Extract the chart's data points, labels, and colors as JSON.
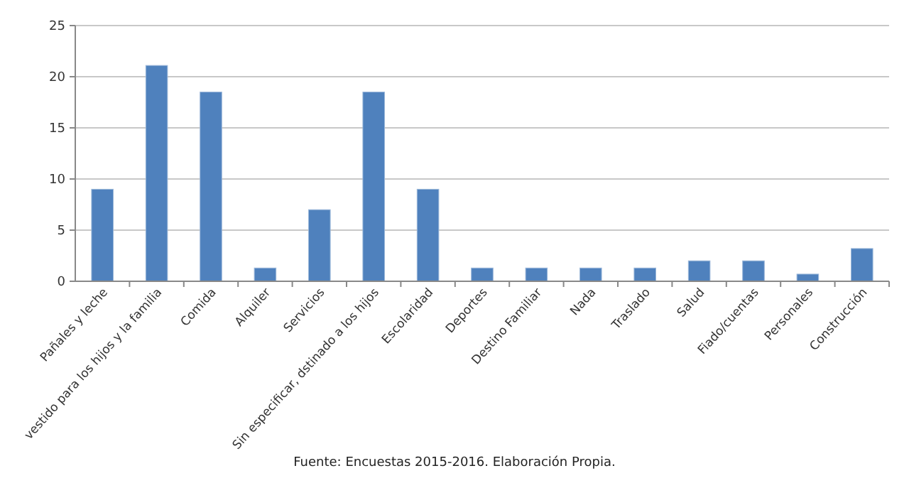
{
  "chart_data": {
    "type": "bar",
    "categories": [
      "Pañales y leche",
      "vestido para los hijos y la familia",
      "Comida",
      "Alquiler",
      "Servicios",
      "Sin especificar, dstinado a los hijos",
      "Escolaridad",
      "Deportes",
      "Destino Familiar",
      "Nada",
      "Traslado",
      "Salud",
      "Fiado/cuentas",
      "Personales",
      "Construcción"
    ],
    "values": [
      9,
      21.1,
      18.5,
      1.3,
      7,
      18.5,
      9,
      1.3,
      1.3,
      1.3,
      1.3,
      2,
      2,
      0.7,
      3.2
    ],
    "color": "#4f81bd",
    "ylim": [
      0,
      25
    ],
    "yticks": [
      0,
      5,
      10,
      15,
      20,
      25
    ],
    "grid": "y",
    "annotations": [
      "Fuente: Encuestas 2015-2016. Elaboración Propia."
    ]
  }
}
